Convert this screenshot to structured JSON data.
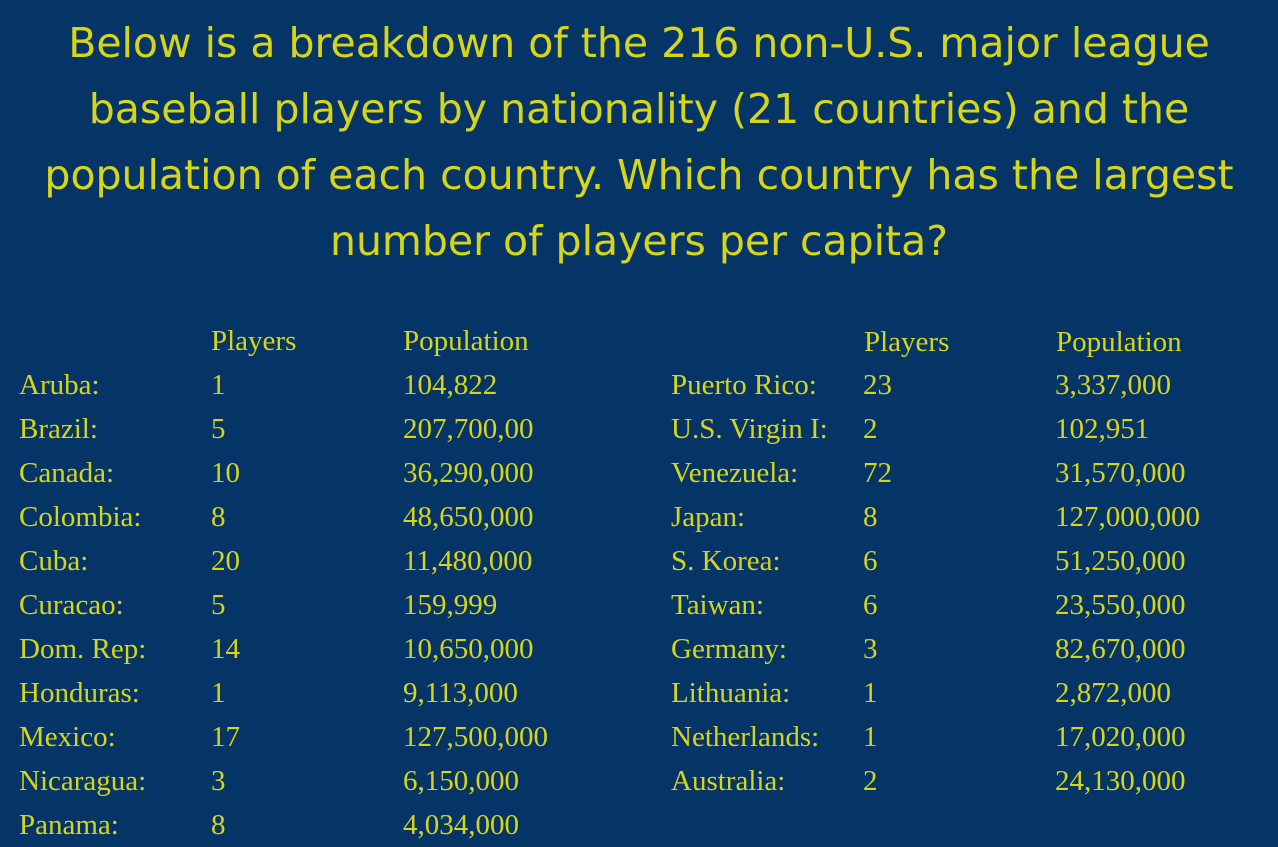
{
  "question": "Below is a breakdown of the 216 non-U.S. major league baseball players by nationality (21 countries) and the population of each country.  Which country has the largest number of players per capita?",
  "left_table": {
    "headers": {
      "players": "Players",
      "population": "Population"
    },
    "rows": [
      {
        "country": "Aruba:",
        "players": "1",
        "population": "104,822"
      },
      {
        "country": "Brazil:",
        "players": "5",
        "population": "207,700,00"
      },
      {
        "country": "Canada:",
        "players": "10",
        "population": "36,290,000"
      },
      {
        "country": "Colombia:",
        "players": "8",
        "population": "48,650,000"
      },
      {
        "country": "Cuba:",
        "players": "20",
        "population": "11,480,000"
      },
      {
        "country": "Curacao:",
        "players": "5",
        "population": "159,999"
      },
      {
        "country": "Dom. Rep:",
        "players": "14",
        "population": "10,650,000"
      },
      {
        "country": "Honduras:",
        "players": "1",
        "population": "9,113,000"
      },
      {
        "country": "Mexico:",
        "players": "17",
        "population": "127,500,000"
      },
      {
        "country": "Nicaragua:",
        "players": "3",
        "population": "6,150,000"
      },
      {
        "country": "Panama:",
        "players": "8",
        "population": "4,034,000"
      }
    ]
  },
  "right_table": {
    "headers": {
      "players": "Players",
      "population": "Population"
    },
    "rows": [
      {
        "country": "Puerto Rico:",
        "players": "23",
        "population": "3,337,000"
      },
      {
        "country": "U.S. Virgin I:",
        "players": "2",
        "population": "102,951"
      },
      {
        "country": "Venezuela:",
        "players": "72",
        "population": "31,570,000"
      },
      {
        "country": "Japan:",
        "players": "8",
        "population": "127,000,000"
      },
      {
        "country": "S. Korea:",
        "players": "6",
        "population": "51,250,000"
      },
      {
        "country": "Taiwan:",
        "players": "6",
        "population": "23,550,000"
      },
      {
        "country": "Germany:",
        "players": "3",
        "population": "82,670,000"
      },
      {
        "country": "Lithuania:",
        "players": "1",
        "population": "2,872,000"
      },
      {
        "country": "Netherlands:",
        "players": "1",
        "population": "17,020,000"
      },
      {
        "country": "Australia:",
        "players": "2",
        "population": "24,130,000"
      }
    ]
  },
  "colors": {
    "background": "#053566",
    "text": "#d6d51a"
  }
}
